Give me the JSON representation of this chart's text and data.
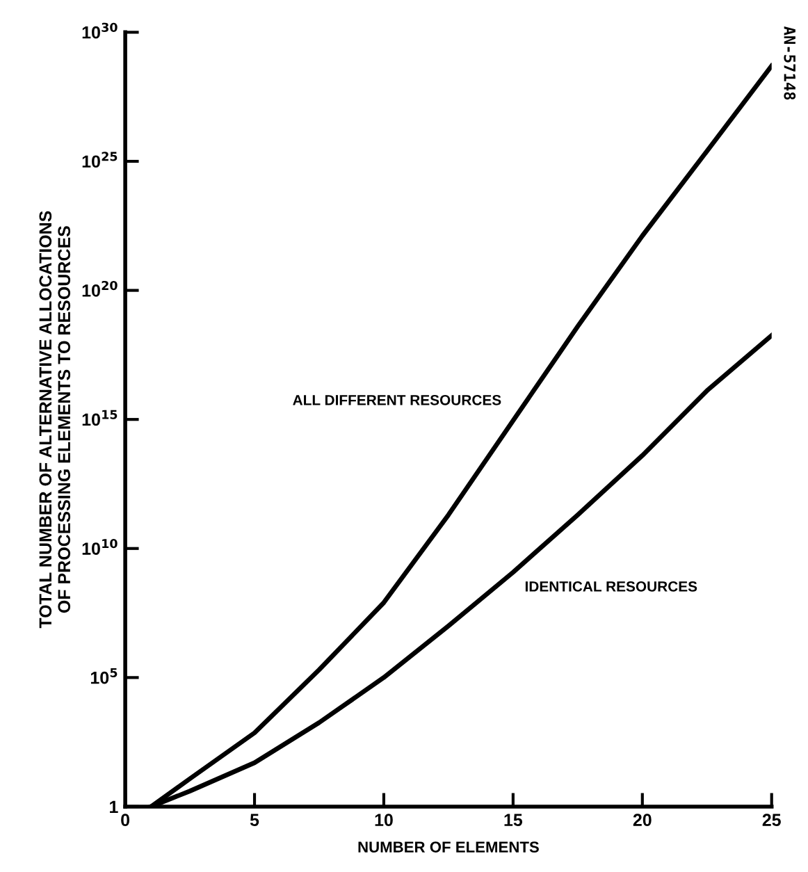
{
  "chart_data": {
    "type": "line",
    "xlabel": "NUMBER OF ELEMENTS",
    "ylabel": "TOTAL NUMBER OF ALTERNATIVE ALLOCATIONS\nOF PROCESSING ELEMENTS TO RESOURCES",
    "x": [
      1,
      2.5,
      5,
      7.5,
      10,
      12.5,
      15,
      17.5,
      20,
      22.5,
      25
    ],
    "series": [
      {
        "name": "ALL DIFFERENT RESOURCES",
        "color": "#000000",
        "values": [
          1,
          12,
          720,
          200000.0,
          80000000.0,
          200000000000.0,
          900000000000000.0,
          4e+18,
          1.3e+22,
          2.5e+25,
          5e+28
        ]
      },
      {
        "name": "IDENTICAL RESOURCES",
        "color": "#000000",
        "values": [
          1,
          4,
          50,
          1800.0,
          100000.0,
          10000000.0,
          1200000000.0,
          200000000000.0,
          40000000000000.0,
          1.3e+16,
          1.8e+18
        ]
      }
    ],
    "log": "y",
    "xlim": [
      0,
      25
    ],
    "xticks": [
      0,
      5,
      10,
      15,
      20,
      25
    ],
    "ylim": [
      1,
      1e+30
    ],
    "yticks": [
      {
        "value": 1,
        "label": "1"
      },
      {
        "value": 100000.0,
        "label": "10$^{5}$"
      },
      {
        "value": 10000000000.0,
        "label": "10$^{10}$"
      },
      {
        "value": 1000000000000000.0,
        "label": "10$^{15}$"
      },
      {
        "value": 1e+20,
        "label": "10$^{20}$"
      },
      {
        "value": 1e+25,
        "label": "10$^{25}$"
      },
      {
        "value": 1e+30,
        "label": "10$^{30}$"
      }
    ],
    "grid": false,
    "legend": false,
    "marker": "none",
    "line_style": "solid",
    "annotations": [
      "AN-57148"
    ]
  }
}
